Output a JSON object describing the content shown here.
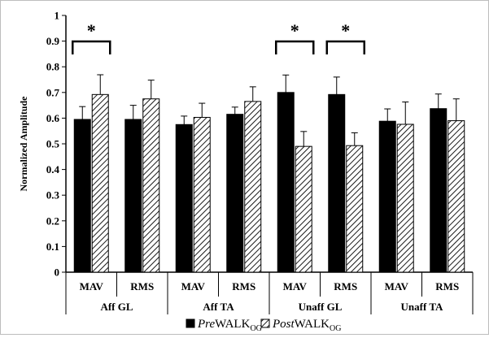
{
  "chart_data": {
    "type": "bar",
    "ylabel": "Normalized Amplitude",
    "ylim": [
      0,
      1
    ],
    "yticks": [
      "0",
      "0.1",
      "0.2",
      "0.3",
      "0.4",
      "0.5",
      "0.6",
      "0.7",
      "0.8",
      "0.9",
      "1"
    ],
    "groups": [
      "Aff GL",
      "Aff TA",
      "Unaff GL",
      "Unaff TA"
    ],
    "categories": [
      "MAV",
      "RMS",
      "MAV",
      "RMS",
      "MAV",
      "RMS",
      "MAV",
      "RMS"
    ],
    "series": [
      {
        "name_italic": "Pre",
        "name_main": "WALK",
        "name_sub": "OG",
        "pattern": "solid",
        "values": [
          0.595,
          0.595,
          0.575,
          0.615,
          0.7,
          0.692,
          0.588,
          0.637
        ],
        "errors": [
          0.05,
          0.055,
          0.033,
          0.028,
          0.068,
          0.068,
          0.048,
          0.057
        ]
      },
      {
        "name_italic": "Post",
        "name_main": "WALK",
        "name_sub": "OG",
        "pattern": "hatched",
        "values": [
          0.692,
          0.675,
          0.603,
          0.665,
          0.49,
          0.493,
          0.576,
          0.59
        ],
        "errors": [
          0.077,
          0.073,
          0.055,
          0.057,
          0.058,
          0.05,
          0.087,
          0.085
        ]
      }
    ],
    "significance": [
      {
        "category_index": 0,
        "label": "*"
      },
      {
        "category_index": 4,
        "label": "*"
      },
      {
        "category_index": 5,
        "label": "*"
      }
    ],
    "colors": {
      "pre": "#000000",
      "post_stripe": "#000000",
      "post_bg": "#ffffff",
      "axis": "#000000"
    },
    "legend_position": "bottom"
  }
}
